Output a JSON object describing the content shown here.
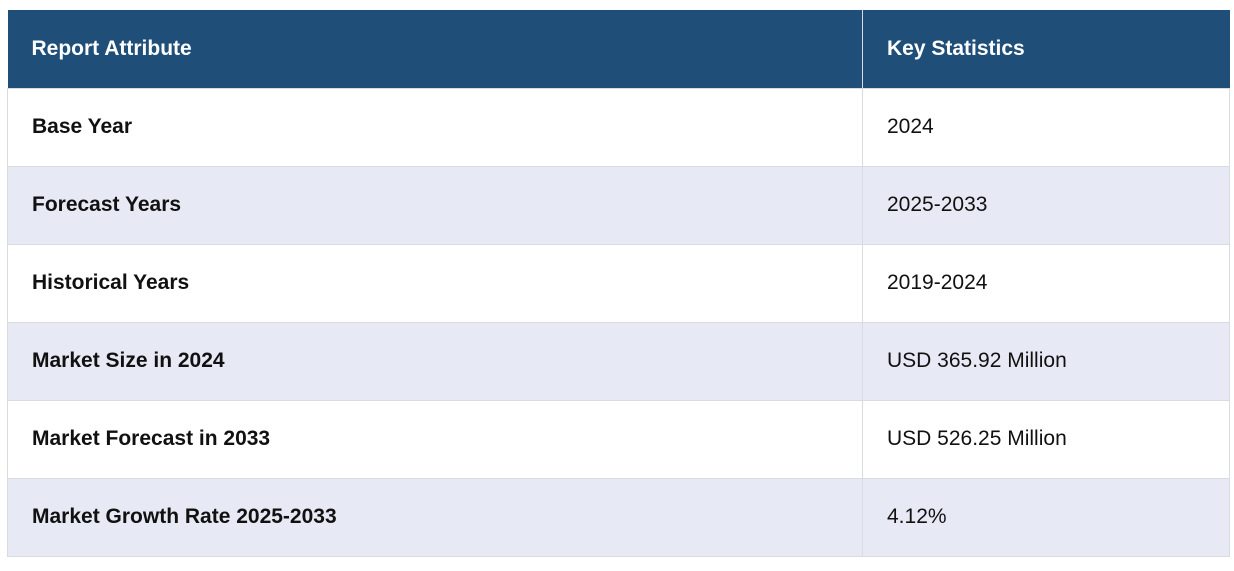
{
  "table": {
    "headers": {
      "attribute": "Report Attribute",
      "statistics": "Key Statistics"
    },
    "rows": [
      {
        "attribute": "Base Year",
        "value": "2024"
      },
      {
        "attribute": "Forecast Years",
        "value": "2025-2033"
      },
      {
        "attribute": "Historical Years",
        "value": "2019-2024"
      },
      {
        "attribute": "Market Size in 2024",
        "value": "USD 365.92 Million"
      },
      {
        "attribute": "Market Forecast in 2033",
        "value": "USD 526.25 Million"
      },
      {
        "attribute": "Market Growth Rate 2025-2033",
        "value": "4.12%"
      }
    ]
  },
  "colors": {
    "header_bg": "#1f4e79",
    "header_text": "#ffffff",
    "row_alt_bg": "#e7e9f5",
    "row_bg": "#ffffff",
    "border": "#d9dbe3"
  }
}
